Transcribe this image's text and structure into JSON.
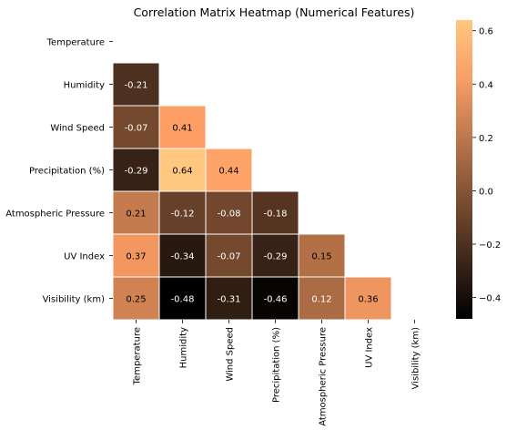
{
  "chart_data": {
    "type": "heatmap",
    "title": "Correlation Matrix Heatmap (Numerical Features)",
    "xlabel": "",
    "ylabel": "",
    "labels": [
      "Temperature",
      "Humidity",
      "Wind Speed",
      "Precipitation (%)",
      "Atmospheric Pressure",
      "UV Index",
      "Visibility (km)"
    ],
    "mask": "upper-triangle-including-diagonal",
    "values": [
      [
        null,
        null,
        null,
        null,
        null,
        null,
        null
      ],
      [
        -0.21,
        null,
        null,
        null,
        null,
        null,
        null
      ],
      [
        -0.07,
        0.41,
        null,
        null,
        null,
        null,
        null
      ],
      [
        -0.29,
        0.64,
        0.44,
        null,
        null,
        null,
        null
      ],
      [
        0.21,
        -0.12,
        -0.08,
        -0.18,
        null,
        null,
        null
      ],
      [
        0.37,
        -0.34,
        -0.07,
        -0.29,
        0.15,
        null,
        null
      ],
      [
        0.25,
        -0.48,
        -0.31,
        -0.46,
        0.12,
        0.36,
        null
      ]
    ],
    "colorbar": {
      "colormap": "copper",
      "range": [
        -0.48,
        0.64
      ],
      "ticks": [
        0.6,
        0.4,
        0.2,
        0.0,
        -0.2,
        -0.4
      ],
      "tick_labels": [
        "0.6",
        "0.4",
        "0.2",
        "0.0",
        "−0.2",
        "−0.4"
      ]
    },
    "colors": {
      "grid_line": "#ffffff",
      "dark_text": "#000000",
      "light_text": "#ffffff"
    }
  }
}
